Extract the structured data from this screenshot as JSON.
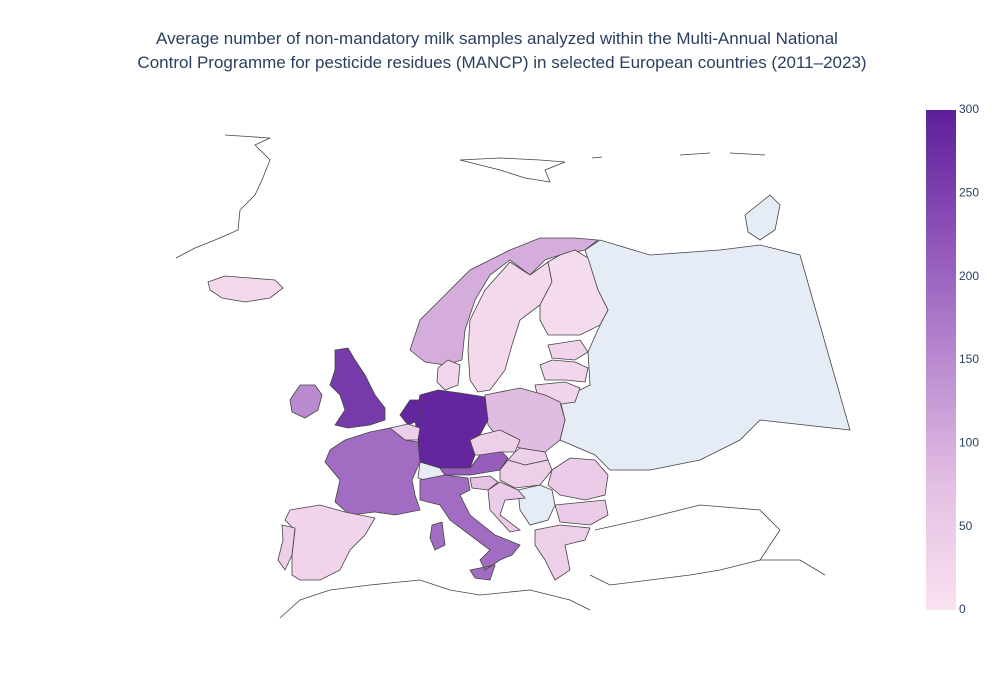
{
  "chart_data": {
    "type": "choropleth",
    "title": [
      "Average number of non-mandatory milk samples analyzed within the Multi-Annual National",
      "Control Programme for pesticide residues (MANCP) in selected European countries (2011–2023)"
    ],
    "values": [
      20,
      150,
      260,
      100,
      20,
      15,
      25,
      30,
      25,
      30,
      80,
      290,
      290,
      40,
      190,
      210,
      40,
      40,
      40,
      70,
      50,
      190,
      50,
      50,
      40,
      30,
      40
    ],
    "colorscale": [
      "#fae2f1",
      "#e3bfe3",
      "#b98ad0",
      "#8d52b8",
      "#5c1f9a"
    ],
    "zlim": [
      0,
      300
    ],
    "zticks": [
      0,
      50,
      100,
      150,
      200,
      250,
      300
    ]
  }
}
